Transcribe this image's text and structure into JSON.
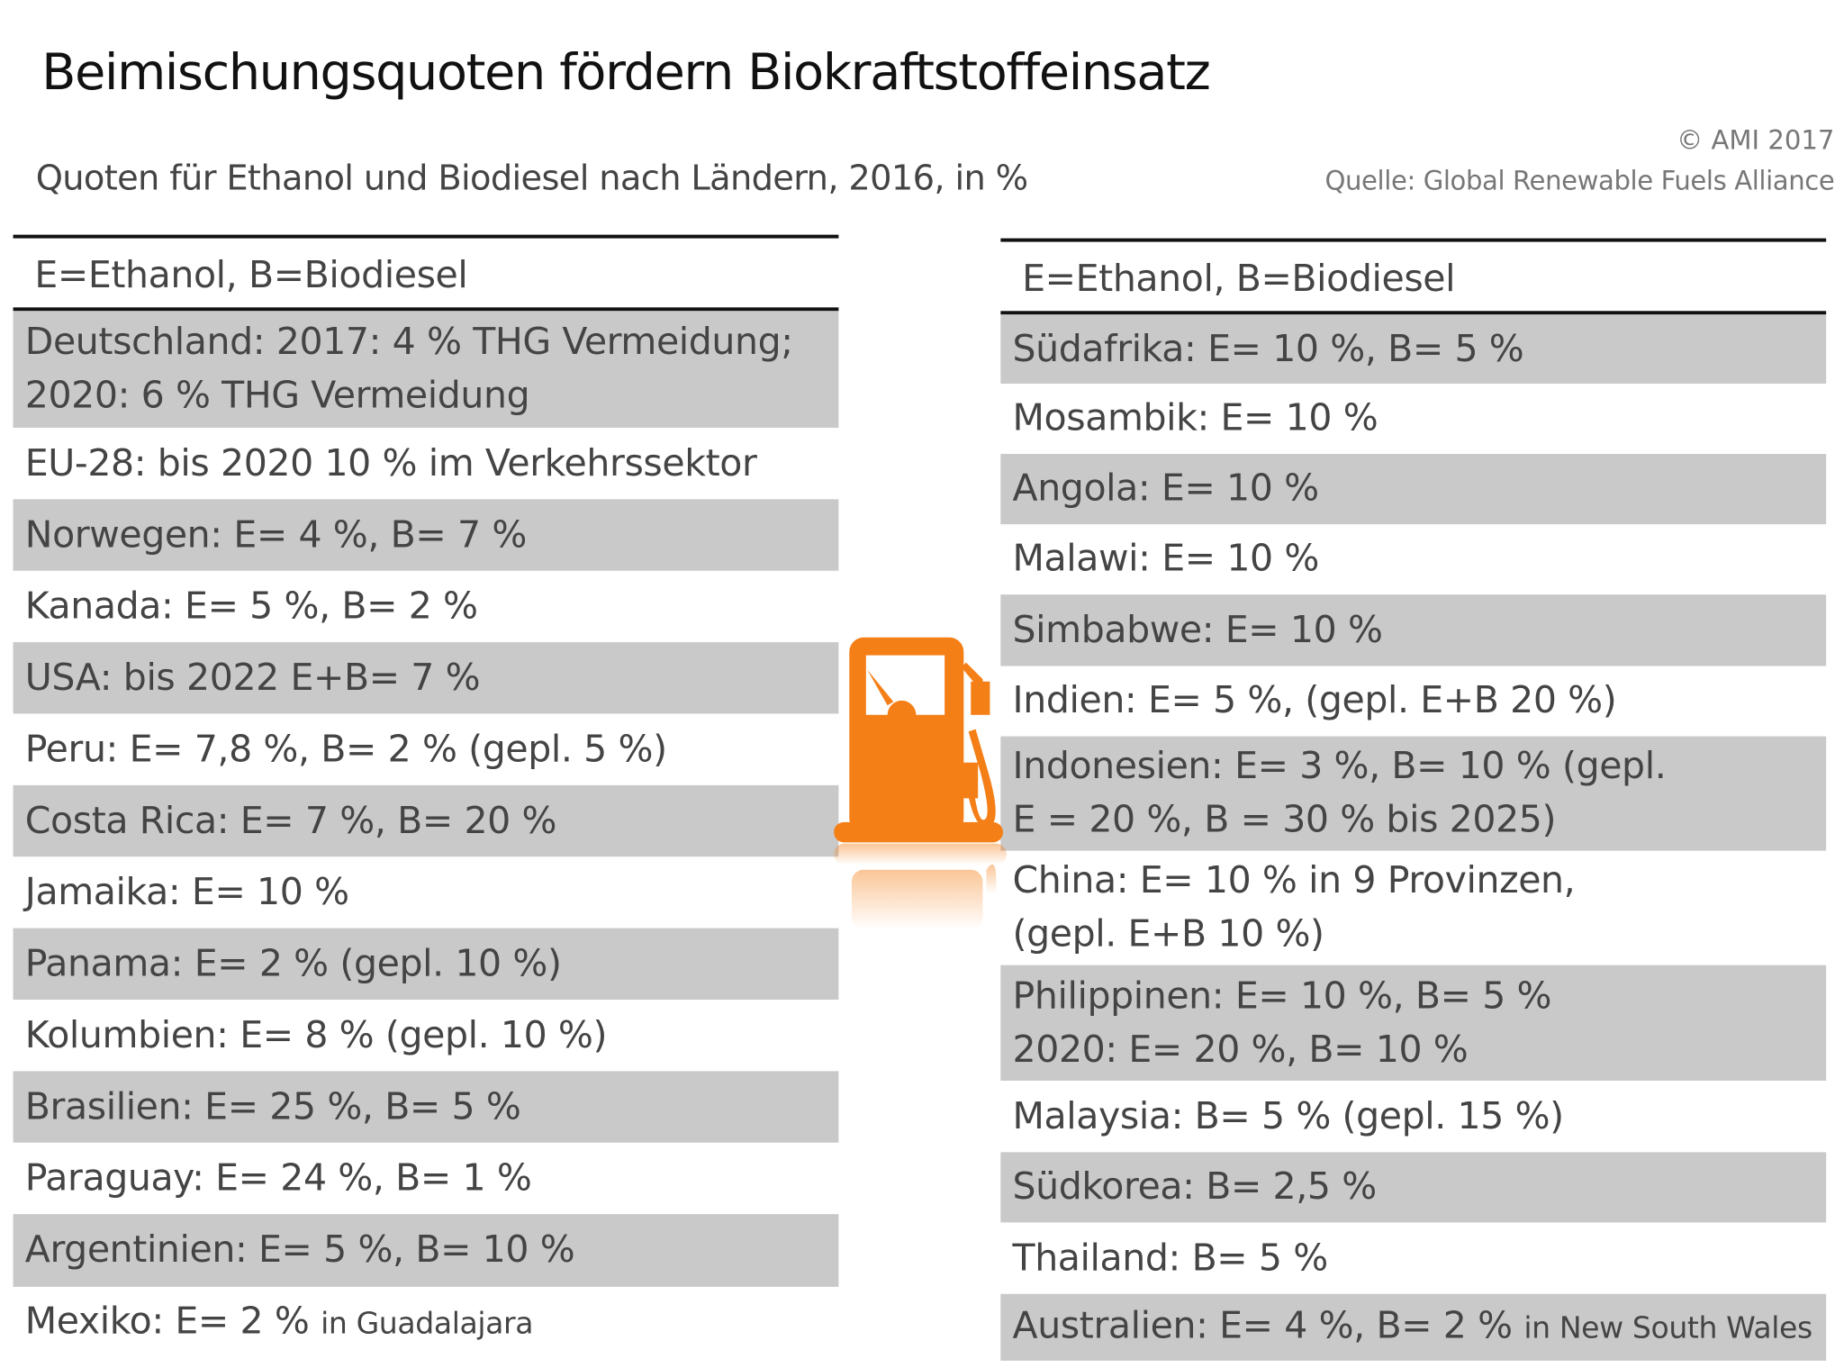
{
  "title": "Beimischungsquoten fördern Biokraftstoffeinsatz",
  "subtitle": "Quoten für Ethanol und Biodiesel nach Ländern, 2016, in %",
  "copyright": "© AMI 2017",
  "source": "Quelle: Global Renewable Fuels Alliance",
  "accent_color": "#f57f17",
  "row_shade_color": "#c9c9c9",
  "icon": "fuel-pump-icon",
  "left_table": {
    "header": "E=Ethanol, B=Biodiesel",
    "rows": [
      {
        "line1": "Deutschland: 2017: 4 % THG Vermeidung;",
        "line2": "2020: 6 % THG Vermeidung"
      },
      {
        "text": "EU-28: bis 2020 10 % im Verkehrssektor"
      },
      {
        "text": "Norwegen: E= 4 %, B= 7 %"
      },
      {
        "text": "Kanada: E= 5 %, B= 2 %"
      },
      {
        "text": "USA: bis 2022 E+B= 7 %"
      },
      {
        "text": "Peru: E= 7,8 %, B= 2 % (gepl. 5 %)"
      },
      {
        "text": "Costa Rica: E= 7 %, B= 20 %"
      },
      {
        "text": "Jamaika: E= 10 %"
      },
      {
        "text": "Panama: E= 2 % (gepl. 10 %)"
      },
      {
        "text": "Kolumbien: E= 8 % (gepl. 10 %)"
      },
      {
        "text": "Brasilien: E= 25 %, B= 5 %"
      },
      {
        "text": "Paraguay: E= 24 %, B= 1 %"
      },
      {
        "text": "Argentinien: E= 5 %, B= 10 %"
      },
      {
        "text": "Mexiko: E= 2 % ",
        "note": "in Guadalajara"
      }
    ]
  },
  "right_table": {
    "header": "E=Ethanol, B=Biodiesel",
    "rows": [
      {
        "text": "Südafrika: E= 10 %, B= 5 %"
      },
      {
        "text": "Mosambik: E= 10 %"
      },
      {
        "text": "Angola: E= 10 %"
      },
      {
        "text": "Malawi: E= 10 %"
      },
      {
        "text": "Simbabwe: E= 10 %"
      },
      {
        "text": "Indien: E= 5 %, (gepl. E+B 20 %)"
      },
      {
        "line1": "Indonesien: E= 3 %, B= 10 % (gepl.",
        "line2": "E = 20 %, B = 30 % bis 2025)"
      },
      {
        "line1": "China: E= 10 % in 9 Provinzen,",
        "line2": "(gepl. E+B 10 %)"
      },
      {
        "line1": "Philippinen: E= 10 %, B= 5 %",
        "line2": "2020: E= 20 %, B= 10 %"
      },
      {
        "text": "Malaysia: B= 5 % (gepl. 15 %)"
      },
      {
        "text": "Südkorea: B= 2,5 %"
      },
      {
        "text": "Thailand: B= 5 %"
      },
      {
        "text": "Australien: E= 4 %, B= 2 % ",
        "note": "in New South Wales"
      }
    ]
  }
}
